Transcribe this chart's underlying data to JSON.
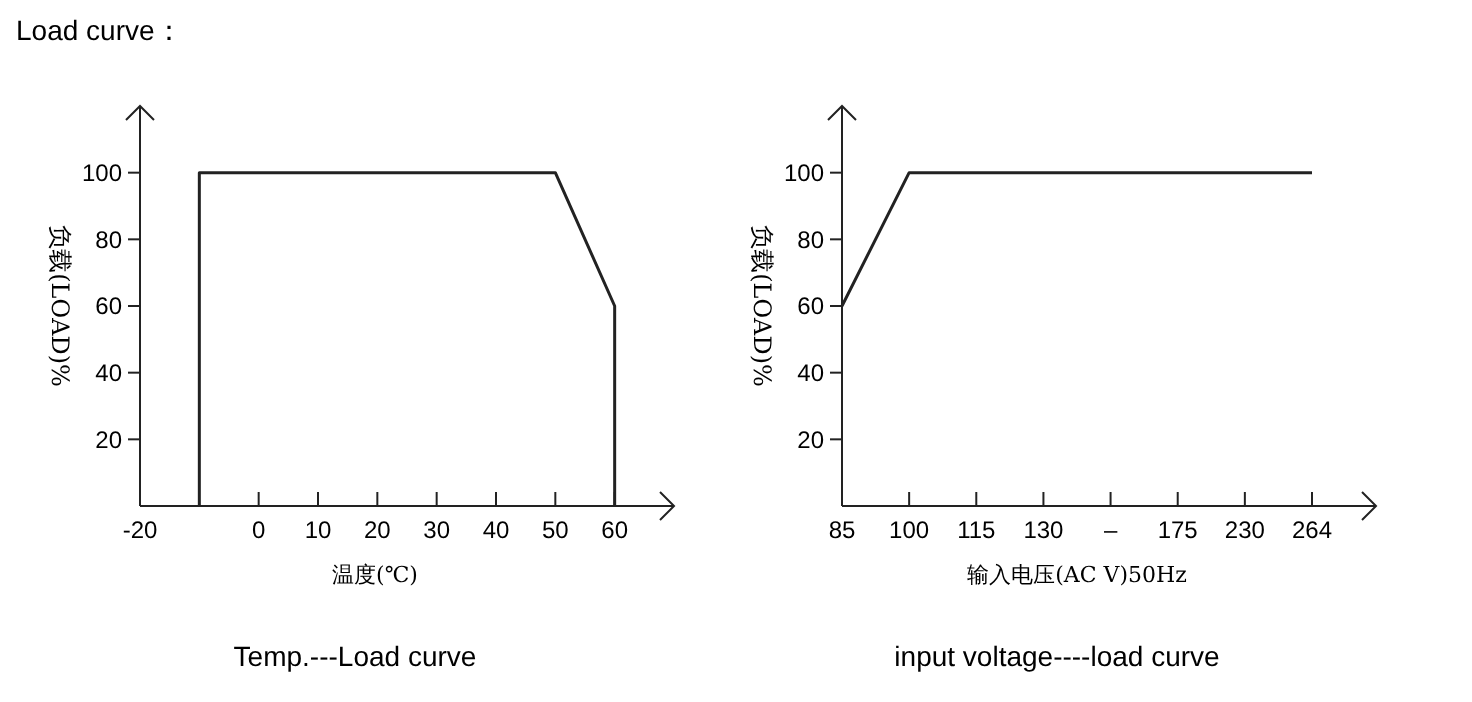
{
  "chart_data": [
    {
      "type": "line",
      "title": "Temp.---Load curve",
      "xlabel": "温度(℃)",
      "ylabel": "负载(LOAD)%",
      "annotations": [
        "Load curve："
      ],
      "series": [
        {
          "color": "#222222",
          "x": [
            -10,
            -10,
            50,
            60,
            60
          ],
          "values": [
            0,
            100,
            100,
            60,
            0
          ]
        }
      ],
      "xlim": [
        -20,
        70
      ],
      "xticks": [
        -20,
        0,
        10,
        20,
        30,
        40,
        50,
        60
      ],
      "ylim": [
        0,
        120
      ],
      "yticks": [
        20,
        40,
        60,
        80,
        100
      ],
      "grid": false,
      "marker": "none",
      "line_style": "solid"
    },
    {
      "type": "line",
      "title": "input voltage----load curve",
      "xlabel": "输入电压(AC V)50Hz",
      "ylabel": "负载(LOAD)%",
      "categories": [
        "85",
        "100",
        "115",
        "130",
        "–",
        "175",
        "230",
        "264"
      ],
      "series": [
        {
          "color": "#222222",
          "values": [
            60,
            100,
            100,
            100,
            100,
            100,
            100,
            100
          ]
        }
      ],
      "ylim": [
        0,
        120
      ],
      "yticks": [
        20,
        40,
        60,
        80,
        100
      ],
      "grid": false,
      "marker": "none",
      "line_style": "solid"
    }
  ]
}
